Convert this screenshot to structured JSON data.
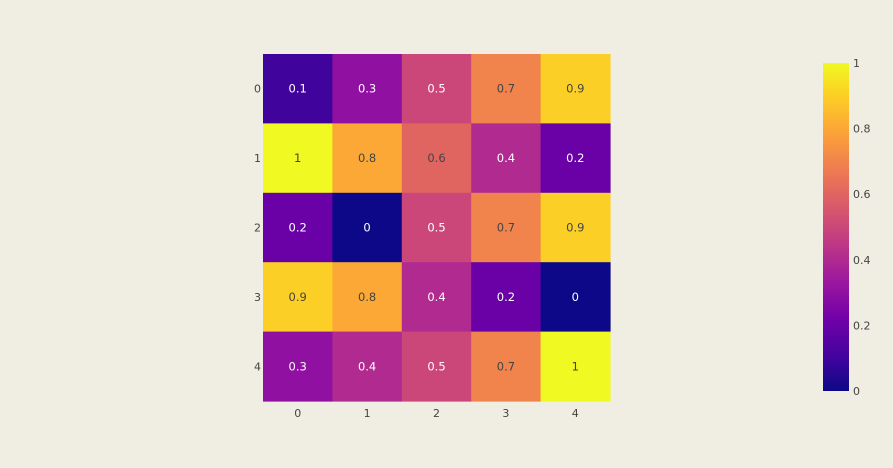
{
  "chart_data": {
    "type": "heatmap",
    "x_categories": [
      "0",
      "1",
      "2",
      "3",
      "4"
    ],
    "y_categories": [
      "0",
      "1",
      "2",
      "3",
      "4"
    ],
    "values": [
      [
        0.1,
        0.3,
        0.5,
        0.7,
        0.9
      ],
      [
        1,
        0.8,
        0.6,
        0.4,
        0.2
      ],
      [
        0.2,
        0,
        0.5,
        0.7,
        0.9
      ],
      [
        0.9,
        0.8,
        0.4,
        0.2,
        0
      ],
      [
        0.3,
        0.4,
        0.5,
        0.7,
        1
      ]
    ],
    "cell_labels": [
      [
        "0.1",
        "0.3",
        "0.5",
        "0.7",
        "0.9"
      ],
      [
        "1",
        "0.8",
        "0.6",
        "0.4",
        "0.2"
      ],
      [
        "0.2",
        "0",
        "0.5",
        "0.7",
        "0.9"
      ],
      [
        "0.9",
        "0.8",
        "0.4",
        "0.2",
        "0"
      ],
      [
        "0.3",
        "0.4",
        "0.5",
        "0.7",
        "1"
      ]
    ],
    "zlim": [
      0,
      1
    ],
    "colorscale": "plasma",
    "colorbar_ticks": [
      "0",
      "0.2",
      "0.4",
      "0.6",
      "0.8",
      "1"
    ],
    "colorbar_tick_values": [
      0,
      0.2,
      0.4,
      0.6,
      0.8,
      1
    ],
    "title": "",
    "xlabel": "",
    "ylabel": ""
  },
  "colors": {
    "background": "#f0ede3",
    "tick_text": "#444444",
    "plasma_stops": [
      "#0d0887",
      "#46039f",
      "#7201a8",
      "#9c179e",
      "#bd3786",
      "#d8576b",
      "#ed7953",
      "#fb9f3a",
      "#fdca26",
      "#f0f921"
    ]
  }
}
